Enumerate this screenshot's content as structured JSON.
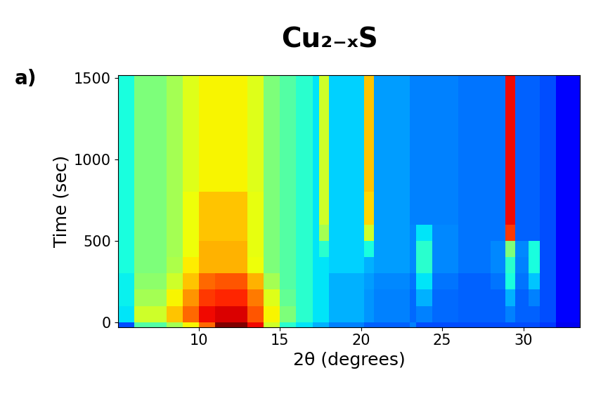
{
  "chart_data": {
    "type": "heatmap",
    "title": "Cu₂₋ₓS",
    "panel_label": "a)",
    "x_label": "2θ (degrees)",
    "y_label": "Time (sec)",
    "xlim": [
      5,
      33.5
    ],
    "ylim": [
      -30,
      1520
    ],
    "xticks": [
      10,
      15,
      20,
      25,
      30
    ],
    "yticks": [
      0,
      500,
      1000,
      1500
    ],
    "x_edges": [
      5,
      6,
      8,
      9,
      10,
      11,
      13,
      14,
      15,
      16,
      17,
      17.4,
      18,
      20.2,
      20.8,
      23,
      23.4,
      24.4,
      26,
      28,
      28.9,
      29.5,
      30.3,
      31,
      32,
      33.5
    ],
    "y_edges": [
      -30,
      0,
      100,
      200,
      300,
      400,
      500,
      600,
      800,
      1000,
      1200,
      1520
    ],
    "color_range": [
      0,
      1
    ],
    "cells": [
      [
        0.2,
        0.45,
        0.55,
        0.65,
        0.8,
        1.0,
        0.9,
        0.6,
        0.4,
        0.35,
        0.3,
        0.3,
        0.25,
        0.22,
        0.22,
        0.25,
        0.2,
        0.2,
        0.2,
        0.2,
        0.2,
        0.2,
        0.2,
        0.18,
        0.1
      ],
      [
        0.35,
        0.6,
        0.7,
        0.8,
        0.9,
        0.92,
        0.82,
        0.65,
        0.5,
        0.4,
        0.35,
        0.35,
        0.3,
        0.27,
        0.25,
        0.23,
        0.25,
        0.23,
        0.22,
        0.22,
        0.25,
        0.22,
        0.22,
        0.2,
        0.12
      ],
      [
        0.36,
        0.55,
        0.65,
        0.75,
        0.85,
        0.87,
        0.78,
        0.62,
        0.47,
        0.4,
        0.35,
        0.35,
        0.3,
        0.27,
        0.25,
        0.23,
        0.3,
        0.23,
        0.22,
        0.22,
        0.3,
        0.22,
        0.25,
        0.2,
        0.12
      ],
      [
        0.36,
        0.52,
        0.6,
        0.7,
        0.8,
        0.82,
        0.72,
        0.55,
        0.45,
        0.4,
        0.35,
        0.35,
        0.3,
        0.28,
        0.26,
        0.24,
        0.35,
        0.24,
        0.22,
        0.24,
        0.38,
        0.24,
        0.32,
        0.2,
        0.12
      ],
      [
        0.38,
        0.5,
        0.56,
        0.66,
        0.72,
        0.72,
        0.64,
        0.5,
        0.45,
        0.4,
        0.35,
        0.35,
        0.33,
        0.3,
        0.28,
        0.26,
        0.4,
        0.26,
        0.24,
        0.26,
        0.4,
        0.25,
        0.38,
        0.2,
        0.12
      ],
      [
        0.38,
        0.5,
        0.55,
        0.64,
        0.72,
        0.72,
        0.63,
        0.5,
        0.45,
        0.4,
        0.35,
        0.4,
        0.33,
        0.38,
        0.28,
        0.26,
        0.4,
        0.26,
        0.24,
        0.26,
        0.5,
        0.26,
        0.38,
        0.2,
        0.12
      ],
      [
        0.38,
        0.5,
        0.55,
        0.64,
        0.7,
        0.7,
        0.63,
        0.5,
        0.45,
        0.4,
        0.35,
        0.55,
        0.33,
        0.6,
        0.28,
        0.26,
        0.35,
        0.26,
        0.24,
        0.24,
        0.85,
        0.22,
        0.22,
        0.2,
        0.12
      ],
      [
        0.38,
        0.5,
        0.55,
        0.64,
        0.7,
        0.7,
        0.63,
        0.5,
        0.45,
        0.4,
        0.35,
        0.6,
        0.33,
        0.68,
        0.28,
        0.25,
        0.25,
        0.25,
        0.24,
        0.24,
        0.9,
        0.22,
        0.22,
        0.2,
        0.12
      ],
      [
        0.38,
        0.5,
        0.55,
        0.62,
        0.65,
        0.65,
        0.62,
        0.5,
        0.45,
        0.4,
        0.35,
        0.6,
        0.33,
        0.7,
        0.28,
        0.25,
        0.25,
        0.25,
        0.24,
        0.24,
        0.9,
        0.22,
        0.22,
        0.2,
        0.12
      ],
      [
        0.38,
        0.5,
        0.55,
        0.62,
        0.65,
        0.65,
        0.62,
        0.5,
        0.45,
        0.4,
        0.35,
        0.6,
        0.33,
        0.7,
        0.28,
        0.25,
        0.25,
        0.25,
        0.24,
        0.24,
        0.9,
        0.22,
        0.22,
        0.2,
        0.12
      ],
      [
        0.38,
        0.5,
        0.55,
        0.62,
        0.65,
        0.65,
        0.62,
        0.5,
        0.45,
        0.4,
        0.35,
        0.6,
        0.33,
        0.7,
        0.28,
        0.25,
        0.25,
        0.25,
        0.24,
        0.24,
        0.9,
        0.22,
        0.22,
        0.2,
        0.12
      ]
    ]
  }
}
